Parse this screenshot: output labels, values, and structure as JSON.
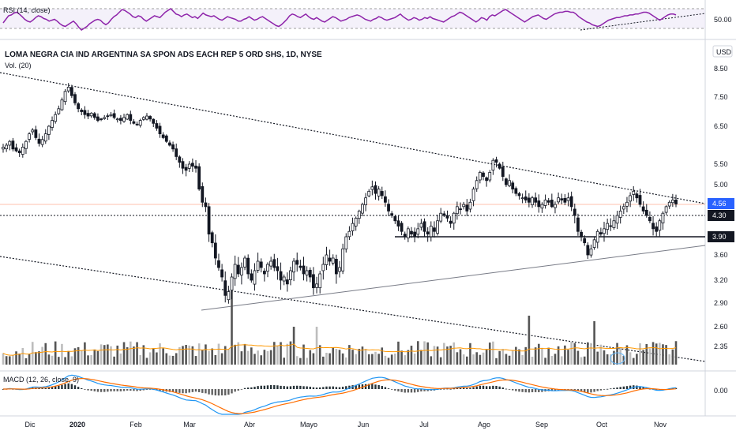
{
  "rsi": {
    "label": "RSI (14, close)",
    "tick": "50.00",
    "values": [
      48,
      52,
      56,
      57,
      59,
      60,
      58,
      55,
      52,
      50,
      49,
      51,
      54,
      56,
      55,
      53,
      52,
      50,
      51,
      52,
      50,
      47,
      45,
      44,
      46,
      48,
      50,
      47,
      43,
      40,
      42,
      44,
      47,
      49,
      51,
      52,
      51,
      48,
      46,
      48,
      52,
      55,
      57,
      60,
      63,
      62,
      60,
      58,
      55,
      54,
      56,
      55,
      52,
      50,
      52,
      54,
      56,
      55,
      54,
      57,
      60,
      62,
      64,
      61,
      58,
      57,
      55,
      57,
      58,
      56,
      54,
      55,
      53,
      56,
      59,
      57,
      56,
      55,
      56,
      54,
      52,
      51,
      53,
      55,
      54,
      53,
      52,
      50,
      50,
      52,
      53,
      55,
      53,
      51,
      52,
      54,
      55,
      53,
      51,
      49,
      47,
      45,
      44,
      46,
      49,
      52,
      56,
      58,
      57,
      55,
      54,
      56,
      58,
      55,
      53,
      52,
      54,
      52,
      50,
      49,
      51,
      53,
      55,
      54,
      52,
      50,
      51,
      52,
      54,
      55,
      56,
      57,
      56,
      54,
      52,
      51,
      50,
      52,
      53,
      55,
      54,
      52,
      51,
      52,
      53,
      54,
      56,
      58,
      55,
      53,
      51,
      52,
      54,
      53,
      51,
      52,
      54,
      53,
      55,
      53,
      52,
      51,
      50,
      49,
      51,
      53,
      55,
      56,
      58,
      60,
      59,
      57,
      55,
      53,
      51,
      49,
      51,
      54,
      53,
      51,
      55,
      57,
      56,
      58,
      60,
      62,
      63,
      61,
      59,
      57,
      55,
      53,
      51,
      49,
      51,
      53,
      55,
      56,
      57,
      55,
      53,
      52,
      54,
      56,
      58,
      59,
      60,
      60,
      61,
      61,
      60,
      60,
      58,
      55,
      53,
      51,
      49,
      48,
      46,
      45,
      44,
      45,
      47,
      49,
      51,
      52,
      53,
      54,
      54,
      55,
      56,
      56,
      57,
      57,
      58,
      58,
      59,
      60,
      60,
      59,
      57,
      55,
      53,
      51,
      53,
      55,
      57,
      58,
      58,
      57
    ]
  },
  "header": {
    "symbol_line": "LOMA NEGRA CIA IND ARGENTINA SA SPON ADS EACH REP 5 ORD SHS, 1D, NYSE",
    "volume_label": "Vol. (20)",
    "currency": "USD"
  },
  "macd": {
    "label": "MACD (12, 26, close, 9)",
    "tick": "0.00"
  },
  "chart_data": {
    "type": "candlestick",
    "title": "LOMA NEGRA CIA IND ARGENTINA SA SPON ADS EACH REP 5 ORD SHS, 1D, NYSE",
    "currency": "USD",
    "y_axis_ticks": [
      "8.50",
      "7.50",
      "6.50",
      "5.50",
      "5.00",
      "4.30",
      "3.90",
      "3.60",
      "3.20",
      "2.90",
      "2.60",
      "2.35"
    ],
    "x_axis_labels": [
      "Dic",
      "2020",
      "Feb",
      "Mar",
      "Abr",
      "Mayo",
      "Jun",
      "Jul",
      "Ago",
      "Sep",
      "Oct",
      "Nov"
    ],
    "price_labels": {
      "last": "4.56",
      "support_1": "4.30",
      "support_2": "3.90"
    },
    "colors": {
      "last_price_bg": "#2962ff",
      "rsi_line": "#8e24aa",
      "macd_line": "#2196f3",
      "signal_line": "#ff6d00",
      "volume_ma": "#ff9800"
    },
    "close_series": [
      5.95,
      6.0,
      6.1,
      5.9,
      5.85,
      5.8,
      5.95,
      6.1,
      6.3,
      6.4,
      6.2,
      6.05,
      6.15,
      6.3,
      6.5,
      6.7,
      6.9,
      7.1,
      7.4,
      7.7,
      7.85,
      7.55,
      7.3,
      7.1,
      7.0,
      6.9,
      6.85,
      6.95,
      6.8,
      6.7,
      6.75,
      6.8,
      6.85,
      6.9,
      6.8,
      6.75,
      6.7,
      6.8,
      6.9,
      6.7,
      6.6,
      6.55,
      6.7,
      6.8,
      6.85,
      6.75,
      6.6,
      6.45,
      6.3,
      6.2,
      6.1,
      6.0,
      5.9,
      5.7,
      5.55,
      5.4,
      5.35,
      5.5,
      5.45,
      5.4,
      4.9,
      4.6,
      4.5,
      3.95,
      3.8,
      3.55,
      3.4,
      3.25,
      3.0,
      3.05,
      3.25,
      3.45,
      3.3,
      3.4,
      3.55,
      3.3,
      3.2,
      3.35,
      3.5,
      3.4,
      3.3,
      3.45,
      3.5,
      3.4,
      3.35,
      3.2,
      3.25,
      3.15,
      3.35,
      3.5,
      3.45,
      3.4,
      3.3,
      3.35,
      3.25,
      3.1,
      3.15,
      3.3,
      3.45,
      3.6,
      3.5,
      3.55,
      3.3,
      3.4,
      3.7,
      3.9,
      4.0,
      4.15,
      4.25,
      4.4,
      4.55,
      4.7,
      4.85,
      4.95,
      4.8,
      4.9,
      4.75,
      4.6,
      4.4,
      4.3,
      4.2,
      4.1,
      4.0,
      3.9,
      4.05,
      3.95,
      3.9,
      4.05,
      4.15,
      4.0,
      3.95,
      4.1,
      4.0,
      4.2,
      4.35,
      4.3,
      4.25,
      4.15,
      4.35,
      4.5,
      4.45,
      4.55,
      4.4,
      4.6,
      4.9,
      5.1,
      5.3,
      5.2,
      5.1,
      5.3,
      5.6,
      5.55,
      5.4,
      5.2,
      5.0,
      5.1,
      4.9,
      4.8,
      4.75,
      4.7,
      4.65,
      4.6,
      4.7,
      4.6,
      4.5,
      4.55,
      4.65,
      4.6,
      4.5,
      4.55,
      4.7,
      4.65,
      4.6,
      4.7,
      4.5,
      4.3,
      4.0,
      3.9,
      3.8,
      3.6,
      3.7,
      3.85,
      4.0,
      3.95,
      4.05,
      4.15,
      4.1,
      4.2,
      4.3,
      4.4,
      4.5,
      4.6,
      4.75,
      4.85,
      4.7,
      4.55,
      4.4,
      4.3,
      4.2,
      4.05,
      4.0,
      4.2,
      4.35,
      4.5,
      4.6,
      4.65,
      4.56
    ],
    "volume_note": "Vol. (20) with 20-period moving average",
    "rsi_level": "50.00",
    "macd_zero": "0.00"
  }
}
